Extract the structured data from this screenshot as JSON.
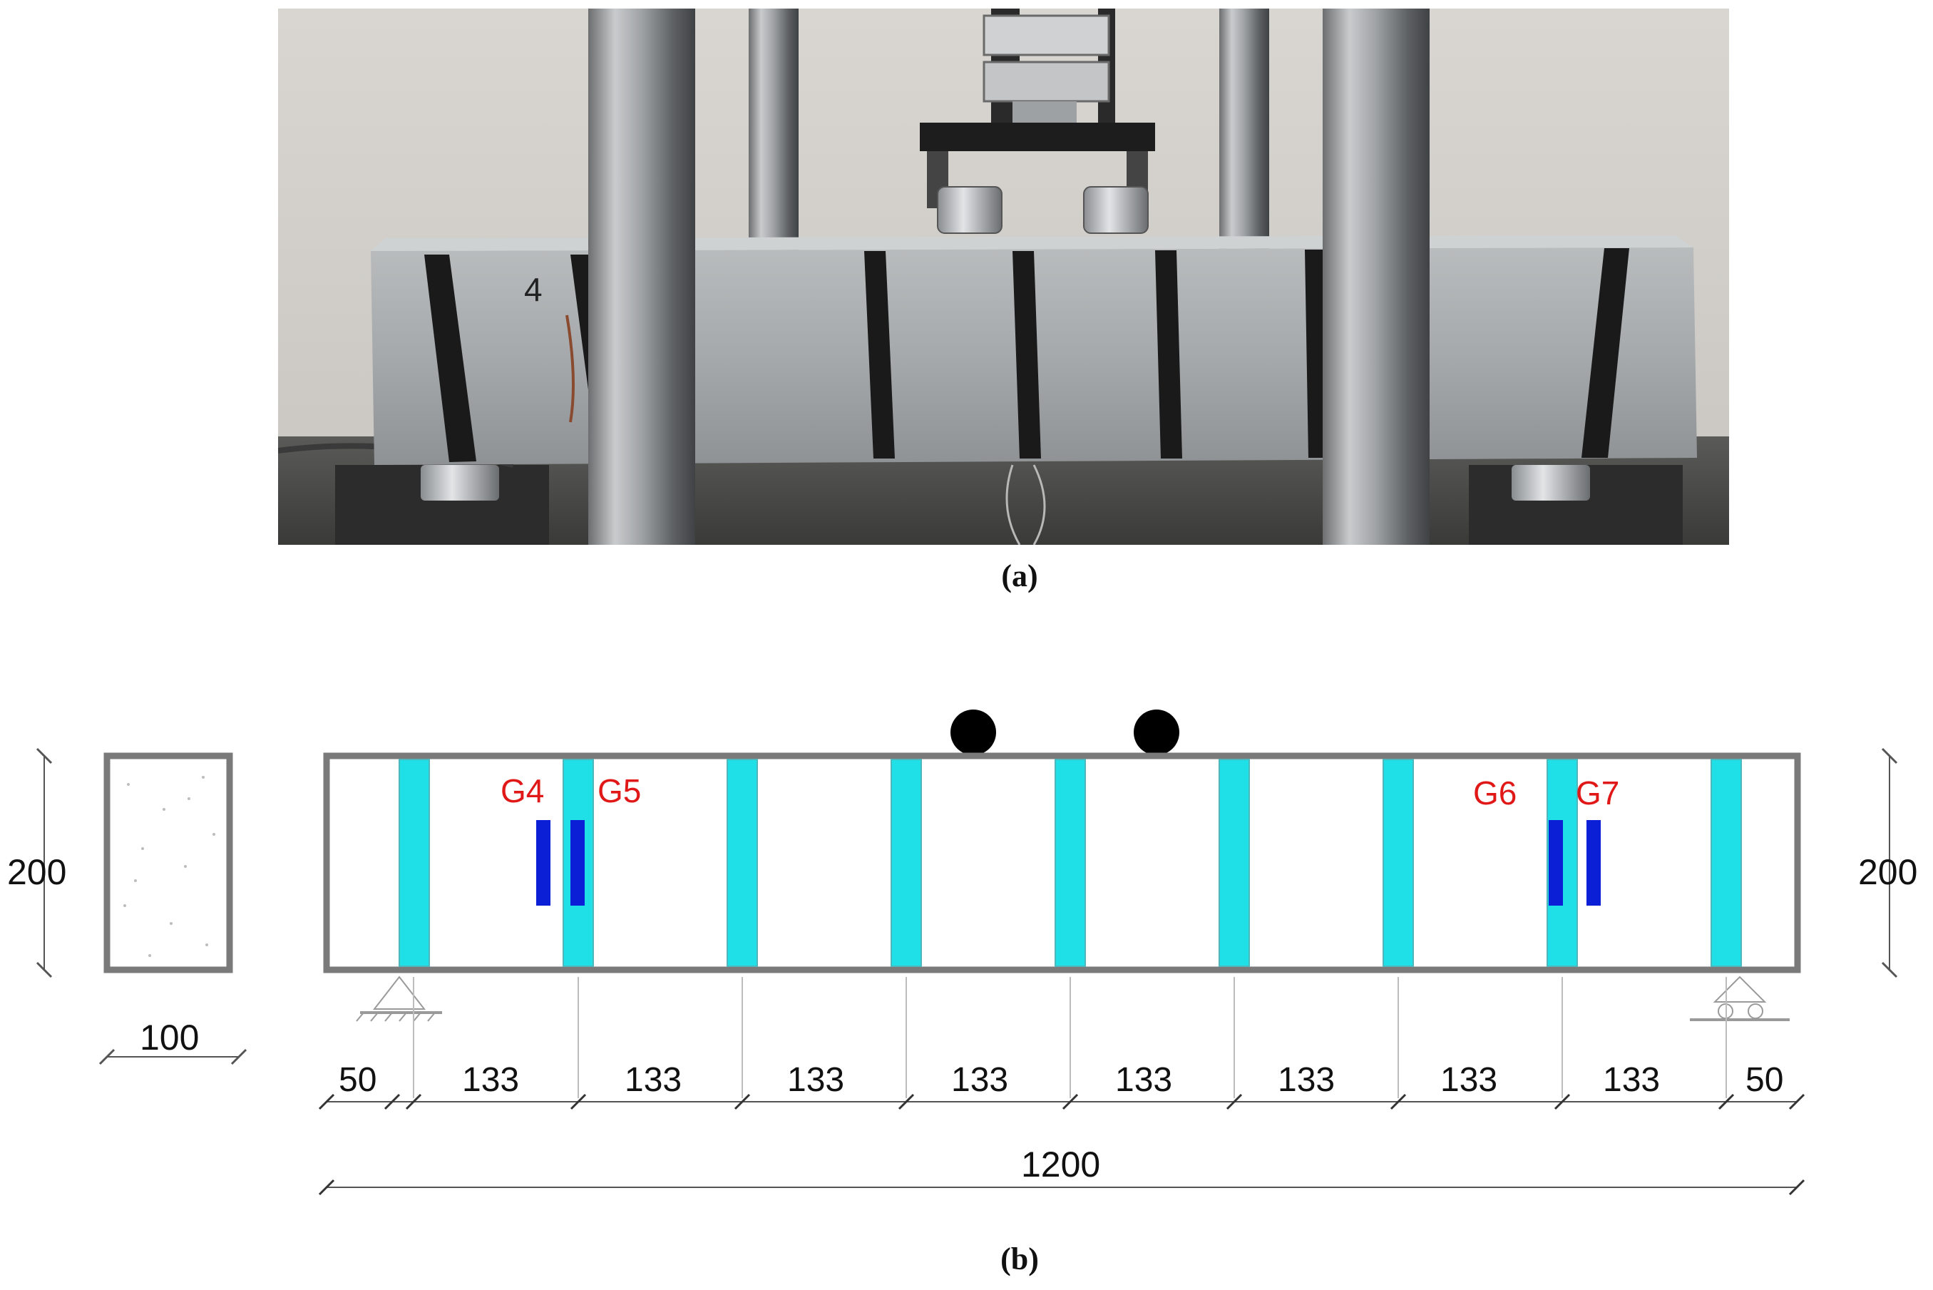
{
  "captions": {
    "a": "(a)",
    "b": "(b)"
  },
  "colors": {
    "stirrup": "#1ee0e6",
    "gauge": "#0a1fd6",
    "gauge_label": "#e01818",
    "beam_outline": "#7a7a7a",
    "load_point": "#000000",
    "wrap_strip": "#1a1a1a"
  },
  "photo": {
    "beam_mark": "4"
  },
  "diagram": {
    "section": {
      "height_label": "200",
      "width_label": "100"
    },
    "beam": {
      "height_label": "200"
    },
    "gauges": [
      {
        "label": "G4"
      },
      {
        "label": "G5"
      },
      {
        "label": "G6"
      },
      {
        "label": "G7"
      }
    ],
    "spacing_labels": [
      "50",
      "133",
      "133",
      "133",
      "133",
      "133",
      "133",
      "133",
      "133",
      "50"
    ],
    "total_length_label": "1200"
  }
}
